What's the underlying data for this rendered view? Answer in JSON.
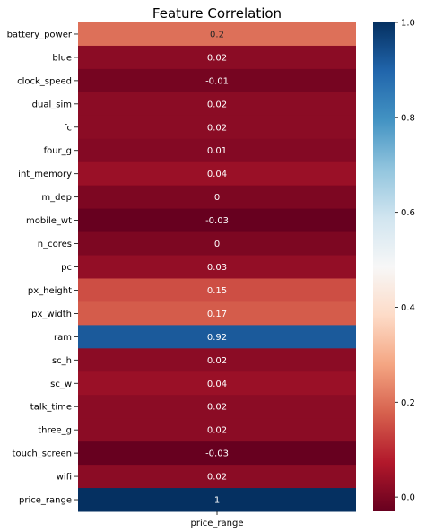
{
  "chart_data": {
    "type": "heatmap",
    "title": "Feature Correlation",
    "xlabel": "",
    "ylabel": "",
    "columns": [
      "price_range"
    ],
    "rows": [
      "battery_power",
      "blue",
      "clock_speed",
      "dual_sim",
      "fc",
      "four_g",
      "int_memory",
      "m_dep",
      "mobile_wt",
      "n_cores",
      "pc",
      "px_height",
      "px_width",
      "ram",
      "sc_h",
      "sc_w",
      "talk_time",
      "three_g",
      "touch_screen",
      "wifi",
      "price_range"
    ],
    "values": [
      0.2,
      0.02,
      -0.01,
      0.02,
      0.02,
      0.01,
      0.04,
      0,
      -0.03,
      0,
      0.03,
      0.15,
      0.17,
      0.92,
      0.02,
      0.04,
      0.02,
      0.02,
      -0.03,
      0.02,
      1
    ],
    "value_labels": [
      "0.2",
      "0.02",
      "-0.01",
      "0.02",
      "0.02",
      "0.01",
      "0.04",
      "0",
      "-0.03",
      "0",
      "0.03",
      "0.15",
      "0.17",
      "0.92",
      "0.02",
      "0.04",
      "0.02",
      "0.02",
      "-0.03",
      "0.02",
      "1"
    ],
    "colorbar": {
      "range": [
        -0.03,
        1.0
      ],
      "ticks": [
        0.0,
        0.2,
        0.4,
        0.6,
        0.8,
        1.0
      ],
      "tick_labels": [
        "0.0",
        "0.2",
        "0.4",
        "0.6",
        "0.8",
        "1.0"
      ],
      "colormap": "RdBu",
      "colors": [
        "#67001f",
        "#b2182b",
        "#d6604d",
        "#f4a582",
        "#fddbc7",
        "#f7f7f7",
        "#d1e5f0",
        "#92c5de",
        "#4393c3",
        "#2166ac",
        "#053061"
      ]
    },
    "annot": true,
    "grid": false
  }
}
